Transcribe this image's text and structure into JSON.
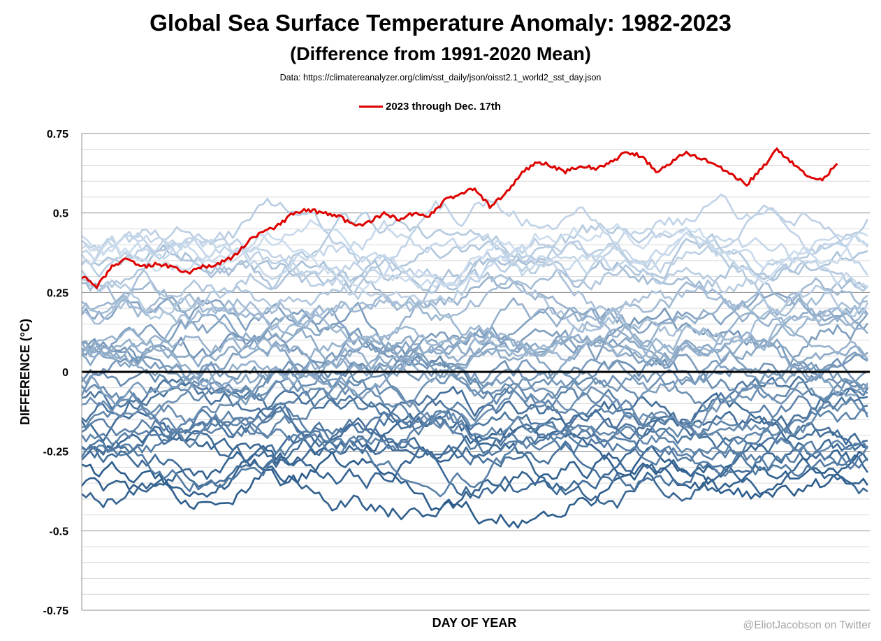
{
  "chart_data": {
    "type": "line",
    "title": "Global Sea Surface Temperature Anomaly: 1982-2023",
    "subtitle": "(Difference from 1991-2020 Mean)",
    "source": "Data: https://climatereanalyzer.org/clim/sst_daily/json/oisst2.1_world2_sst_day.json",
    "xlabel": "DAY OF YEAR",
    "ylabel": "DIFFERENCE (°C)",
    "ylim": [
      -0.75,
      0.75
    ],
    "xlim": [
      1,
      366
    ],
    "yticks": [
      {
        "value": 0.75,
        "label": "0.75"
      },
      {
        "value": 0.5,
        "label": "0.5"
      },
      {
        "value": 0.25,
        "label": "0.25"
      },
      {
        "value": 0,
        "label": "0"
      },
      {
        "value": -0.25,
        "label": "-0.25"
      },
      {
        "value": -0.5,
        "label": "-0.5"
      },
      {
        "value": -0.75,
        "label": "-0.75"
      }
    ],
    "grid": true,
    "legend_position": "top-center",
    "highlight_series": {
      "name": "2023 through Dec. 17th",
      "color": "#dd0000",
      "x": [
        1,
        8,
        15,
        22,
        29,
        36,
        43,
        50,
        57,
        64,
        71,
        78,
        85,
        92,
        99,
        106,
        113,
        120,
        127,
        134,
        141,
        148,
        155,
        162,
        169,
        176,
        183,
        190,
        197,
        204,
        211,
        218,
        225,
        232,
        239,
        246,
        253,
        260,
        267,
        274,
        281,
        288,
        295,
        302,
        309,
        316,
        323,
        330,
        337,
        344,
        351
      ],
      "values": [
        0.3,
        0.27,
        0.33,
        0.36,
        0.33,
        0.34,
        0.33,
        0.31,
        0.33,
        0.34,
        0.36,
        0.41,
        0.44,
        0.46,
        0.5,
        0.51,
        0.5,
        0.49,
        0.46,
        0.47,
        0.5,
        0.48,
        0.5,
        0.49,
        0.54,
        0.56,
        0.58,
        0.52,
        0.56,
        0.62,
        0.66,
        0.65,
        0.63,
        0.65,
        0.64,
        0.66,
        0.69,
        0.68,
        0.63,
        0.66,
        0.69,
        0.67,
        0.65,
        0.62,
        0.59,
        0.64,
        0.7,
        0.66,
        0.62,
        0.6,
        0.66
      ]
    },
    "background_series": {
      "years": "1982-2022",
      "count": 41,
      "color_range": [
        "#2d5d8c",
        "#cdddee"
      ],
      "mean_anomaly_range": [
        -0.35,
        0.42
      ]
    },
    "zero_line": {
      "value": 0,
      "color": "#000000"
    }
  },
  "credit": "@EliotJacobson on Twitter"
}
